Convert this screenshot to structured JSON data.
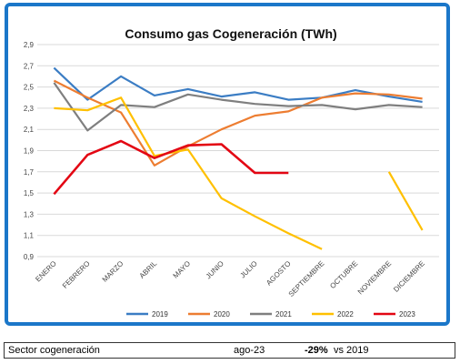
{
  "chart_data": {
    "type": "line",
    "title": "Consumo gas Cogeneración (TWh)",
    "categories": [
      "ENERO",
      "FEBRERO",
      "MARZO",
      "ABRIL",
      "MAYO",
      "JUNIO",
      "JULIO",
      "AGOSTO",
      "SEPTIEMBRE",
      "OCTUBRE",
      "NOVIEMBRE",
      "DICIEMBRE"
    ],
    "yticks": [
      "0,9",
      "1,1",
      "1,3",
      "1,5",
      "1,7",
      "1,9",
      "2,1",
      "2,3",
      "2,5",
      "2,7",
      "2,9"
    ],
    "ylim": [
      0.9,
      2.9
    ],
    "grid": true,
    "legend_position": "bottom",
    "series": [
      {
        "name": "2019",
        "color": "#3b7dc4",
        "values": [
          2.68,
          2.38,
          2.6,
          2.42,
          2.48,
          2.41,
          2.45,
          2.38,
          2.4,
          2.47,
          2.41,
          2.36
        ]
      },
      {
        "name": "2020",
        "color": "#ed7d31",
        "values": [
          2.56,
          2.4,
          2.26,
          1.76,
          1.94,
          2.1,
          2.23,
          2.27,
          2.4,
          2.44,
          2.43,
          2.39
        ]
      },
      {
        "name": "2021",
        "color": "#7f7f7f",
        "values": [
          2.54,
          2.09,
          2.33,
          2.31,
          2.43,
          2.38,
          2.34,
          2.32,
          2.33,
          2.29,
          2.33,
          2.31
        ]
      },
      {
        "name": "2022",
        "color": "#ffc000",
        "values": [
          2.3,
          2.28,
          2.4,
          1.85,
          1.91,
          1.45,
          1.28,
          1.12,
          0.97,
          null,
          1.7,
          1.15
        ]
      },
      {
        "name": "2023",
        "color": "#e30613",
        "values": [
          1.49,
          1.86,
          1.99,
          1.83,
          1.95,
          1.96,
          1.69,
          1.69,
          null,
          null,
          null,
          null
        ]
      }
    ]
  },
  "footer": {
    "label": "Sector cogeneración",
    "date": "ago-23",
    "percent": "-29%",
    "comparison": "vs 2019"
  }
}
